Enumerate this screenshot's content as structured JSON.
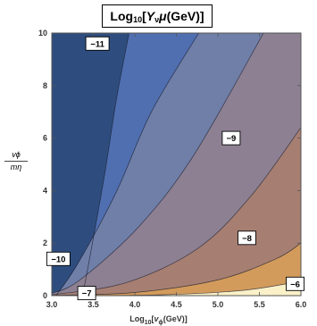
{
  "chart_data": {
    "type": "contour",
    "title": "Log10[Yνμ(GeV)]",
    "title_parts": {
      "base": "Log",
      "base_sub": "10",
      "open": "[",
      "var": "Y",
      "var_sub": "ν",
      "mu": "μ",
      "unit": "(GeV)",
      "close": "]"
    },
    "xlabel": "Log10[vϕ(GeV)]",
    "xlabel_parts": {
      "base": "Log",
      "base_sub": "10",
      "open": "[",
      "var": "v",
      "var_sub": "ϕ",
      "unit": "(GeV)",
      "close": "]"
    },
    "ylabel_parts": {
      "num": "vϕ",
      "den": "mη"
    },
    "xlim": [
      3.0,
      6.0
    ],
    "ylim": [
      0,
      10
    ],
    "x_ticks": [
      "3.0",
      "3.5",
      "4.0",
      "4.5",
      "5.0",
      "5.5",
      "6.0"
    ],
    "y_ticks": [
      "0",
      "2",
      "4",
      "6",
      "8",
      "10"
    ],
    "levels": [
      -11,
      -10,
      -9,
      -8,
      -7,
      -6
    ],
    "region_colors": [
      "#2e4d7e",
      "#4f6fb0",
      "#6f7fa8",
      "#8c8092",
      "#a67f72",
      "#d39b5b",
      "#faf1c8"
    ],
    "contours": [
      {
        "level": -11,
        "x": [
          3.37,
          3.46,
          3.63,
          3.78,
          3.93
        ],
        "y": [
          0,
          1.5,
          4.5,
          7.5,
          10
        ]
      },
      {
        "level": -10,
        "x": [
          3.05,
          3.31,
          3.77,
          4.2,
          4.77
        ],
        "y": [
          0,
          1.2,
          3.9,
          7.0,
          10
        ]
      },
      {
        "level": -9,
        "x": [
          3.0,
          3.34,
          4.04,
          4.7,
          5.55
        ],
        "y": [
          0.08,
          0.6,
          2.6,
          5.3,
          10
        ]
      },
      {
        "level": -8,
        "x": [
          3.0,
          3.9,
          4.76,
          5.4,
          6.0
        ],
        "y": [
          0.03,
          0.5,
          1.8,
          3.8,
          6.4
        ]
      },
      {
        "level": -7,
        "x": [
          3.0,
          4.0,
          5.0,
          5.7,
          6.0
        ],
        "y": [
          0.01,
          0.12,
          0.6,
          1.4,
          2.0
        ]
      },
      {
        "level": -6,
        "x": [
          3.0,
          4.3,
          5.3,
          6.0
        ],
        "y": [
          0.0,
          0.03,
          0.2,
          0.55
        ]
      }
    ],
    "contour_labels": [
      {
        "text": "-11",
        "x": 3.55,
        "y": 9.6
      },
      {
        "text": "-10",
        "x": 3.08,
        "y": 1.4
      },
      {
        "text": "-9",
        "x": 5.16,
        "y": 6.0
      },
      {
        "text": "-8",
        "x": 5.35,
        "y": 2.2
      },
      {
        "text": "-7",
        "x": 3.42,
        "y": 0.1
      },
      {
        "text": "-6",
        "x": 5.93,
        "y": 0.45
      }
    ]
  }
}
